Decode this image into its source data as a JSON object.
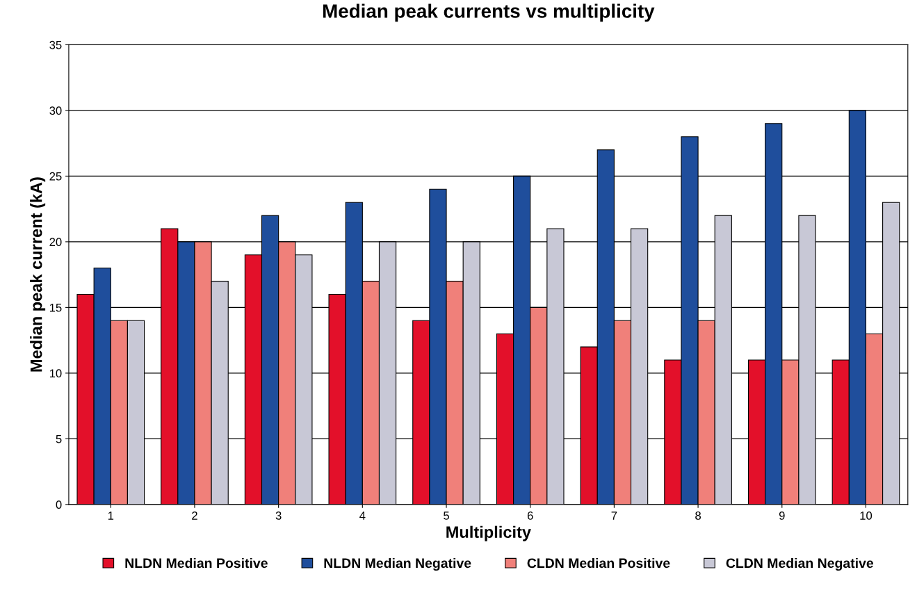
{
  "chart_data": {
    "type": "bar",
    "title": "Median peak currents vs multiplicity",
    "xlabel": "Multiplicity",
    "ylabel": "Median peak current (kA)",
    "categories": [
      "1",
      "2",
      "3",
      "4",
      "5",
      "6",
      "7",
      "8",
      "9",
      "10"
    ],
    "series": [
      {
        "name": "NLDN Median Positive",
        "color": "#e3102a",
        "values": [
          16,
          21,
          19,
          16,
          14,
          13,
          12,
          11,
          11,
          11
        ]
      },
      {
        "name": "NLDN Median Negative",
        "color": "#1f4e9c",
        "values": [
          18,
          20,
          22,
          23,
          24,
          25,
          27,
          28,
          29,
          30
        ]
      },
      {
        "name": "CLDN Median Positive",
        "color": "#f0807a",
        "values": [
          14,
          20,
          20,
          17,
          17,
          15,
          14,
          14,
          11,
          13
        ]
      },
      {
        "name": "CLDN Median Negative",
        "color": "#c8c8d6",
        "values": [
          14,
          17,
          19,
          20,
          20,
          21,
          21,
          22,
          22,
          23
        ]
      }
    ],
    "ylim": [
      0,
      35
    ],
    "yticks": [
      0,
      5,
      10,
      15,
      20,
      25,
      30,
      35
    ],
    "grid": "y",
    "legend": "bottom"
  }
}
